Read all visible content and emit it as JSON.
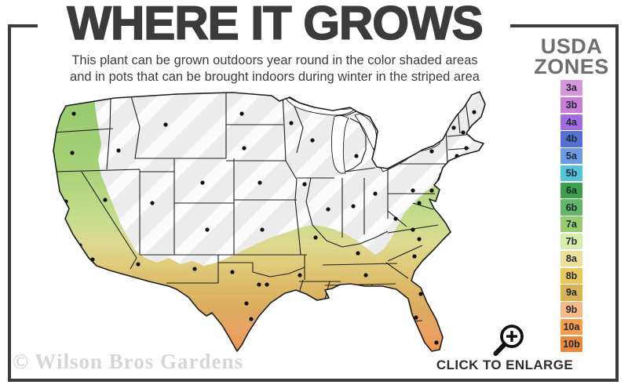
{
  "header": {
    "title": "WHERE IT GROWS",
    "subtitle_line1": "This plant can be grown outdoors year round in the color shaded areas",
    "subtitle_line2": "and in pots that can be brought indoors during winter in the striped area"
  },
  "legend": {
    "title_line1": "USDA",
    "title_line2": "ZONES",
    "zones": [
      {
        "label": "3a",
        "color": "#d795dc"
      },
      {
        "label": "3b",
        "color": "#c77fd4"
      },
      {
        "label": "4a",
        "color": "#9f6ee0"
      },
      {
        "label": "4b",
        "color": "#5570d6"
      },
      {
        "label": "5a",
        "color": "#6e9ae2"
      },
      {
        "label": "5b",
        "color": "#55c3d8"
      },
      {
        "label": "6a",
        "color": "#3da04d"
      },
      {
        "label": "6b",
        "color": "#63b76a"
      },
      {
        "label": "7a",
        "color": "#97cb70"
      },
      {
        "label": "7b",
        "color": "#d9ecae"
      },
      {
        "label": "8a",
        "color": "#ecdf9a"
      },
      {
        "label": "8b",
        "color": "#e9c95e"
      },
      {
        "label": "9a",
        "color": "#d6b354"
      },
      {
        "label": "9b",
        "color": "#f5b988"
      },
      {
        "label": "10a",
        "color": "#f59d4d"
      },
      {
        "label": "10b",
        "color": "#e8883a"
      }
    ]
  },
  "map": {
    "colors": {
      "not_hardy_fill": "#ececec",
      "stripe": "#ffffff",
      "line": "#1c1c1c",
      "zone_gradient_top": "#93c86d",
      "zone_gradient_bottom": "#ee8e40"
    }
  },
  "footer": {
    "watermark": "© Wilson Bros Gardens",
    "enlarge_label": "CLICK TO ENLARGE"
  },
  "frame_color": "#3b3b3b"
}
